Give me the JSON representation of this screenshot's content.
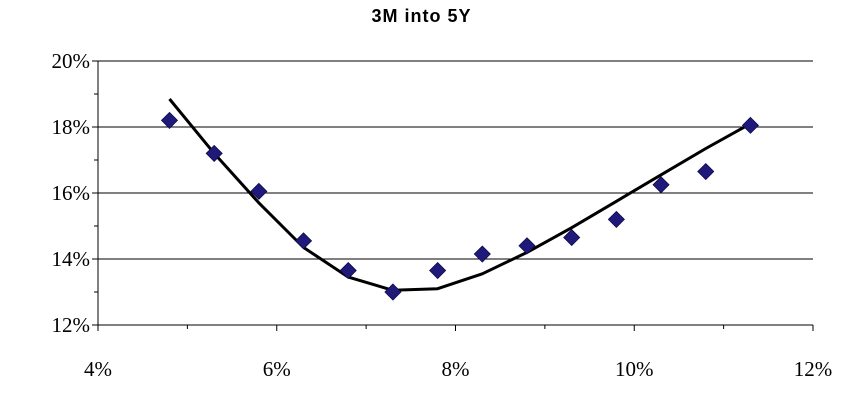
{
  "chart_data": {
    "type": "scatter",
    "title": "3M into 5Y",
    "xlabel": "",
    "ylabel": "",
    "xlim": [
      0.04,
      0.12
    ],
    "ylim": [
      0.12,
      0.2
    ],
    "x_ticks": [
      0.04,
      0.06,
      0.08,
      0.1,
      0.12
    ],
    "y_ticks": [
      0.12,
      0.14,
      0.16,
      0.18,
      0.2
    ],
    "x_tick_labels": [
      "4%",
      "6%",
      "8%",
      "10%",
      "12%"
    ],
    "y_tick_labels": [
      "12%",
      "14%",
      "16%",
      "18%",
      "20%"
    ],
    "grid": "horizontal",
    "legend": "none",
    "colors": {
      "markers": "#1f1a7a",
      "line": "#000000",
      "grid": "#000000"
    },
    "series": [
      {
        "type": "scatter",
        "marker": "diamond",
        "x": [
          0.048,
          0.053,
          0.058,
          0.063,
          0.068,
          0.073,
          0.078,
          0.083,
          0.088,
          0.093,
          0.098,
          0.103,
          0.108,
          0.113
        ],
        "y": [
          0.182,
          0.172,
          0.1605,
          0.1455,
          0.1365,
          0.13,
          0.1365,
          0.1415,
          0.144,
          0.1465,
          0.152,
          0.1625,
          0.1665,
          0.1805
        ]
      },
      {
        "type": "line",
        "x": [
          0.048,
          0.053,
          0.058,
          0.063,
          0.068,
          0.073,
          0.078,
          0.083,
          0.088,
          0.093,
          0.098,
          0.103,
          0.108,
          0.113
        ],
        "y": [
          0.1885,
          0.172,
          0.157,
          0.1435,
          0.1345,
          0.1305,
          0.131,
          0.1355,
          0.142,
          0.1495,
          0.1575,
          0.1655,
          0.1735,
          0.181
        ]
      }
    ]
  }
}
